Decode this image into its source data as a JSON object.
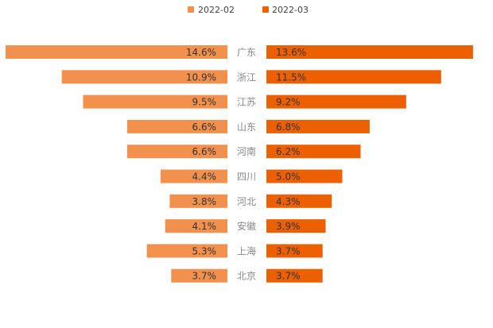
{
  "chart_data": {
    "type": "bar",
    "orientation": "horizontal-butterfly",
    "categories": [
      "广东",
      "浙江",
      "江苏",
      "山东",
      "河南",
      "四川",
      "河北",
      "安徽",
      "上海",
      "北京"
    ],
    "series": [
      {
        "name": "2022-02",
        "color": "#F2914D",
        "values": [
          14.6,
          10.9,
          9.5,
          6.6,
          6.6,
          4.4,
          3.8,
          4.1,
          5.3,
          3.7
        ],
        "labels": [
          "14.6%",
          "10.9%",
          "9.5%",
          "6.6%",
          "6.6%",
          "4.4%",
          "3.8%",
          "4.1%",
          "5.3%",
          "3.7%"
        ]
      },
      {
        "name": "2022-03",
        "color": "#EC6002",
        "values": [
          13.6,
          11.5,
          9.2,
          6.8,
          6.2,
          5.0,
          4.3,
          3.9,
          3.7,
          3.7
        ],
        "labels": [
          "13.6%",
          "11.5%",
          "9.2%",
          "6.8%",
          "6.2%",
          "5.0%",
          "4.3%",
          "3.9%",
          "3.7%",
          "3.7%"
        ]
      }
    ],
    "unit": "%",
    "xlim": [
      0,
      14.6
    ],
    "legend_position": "top-center"
  }
}
